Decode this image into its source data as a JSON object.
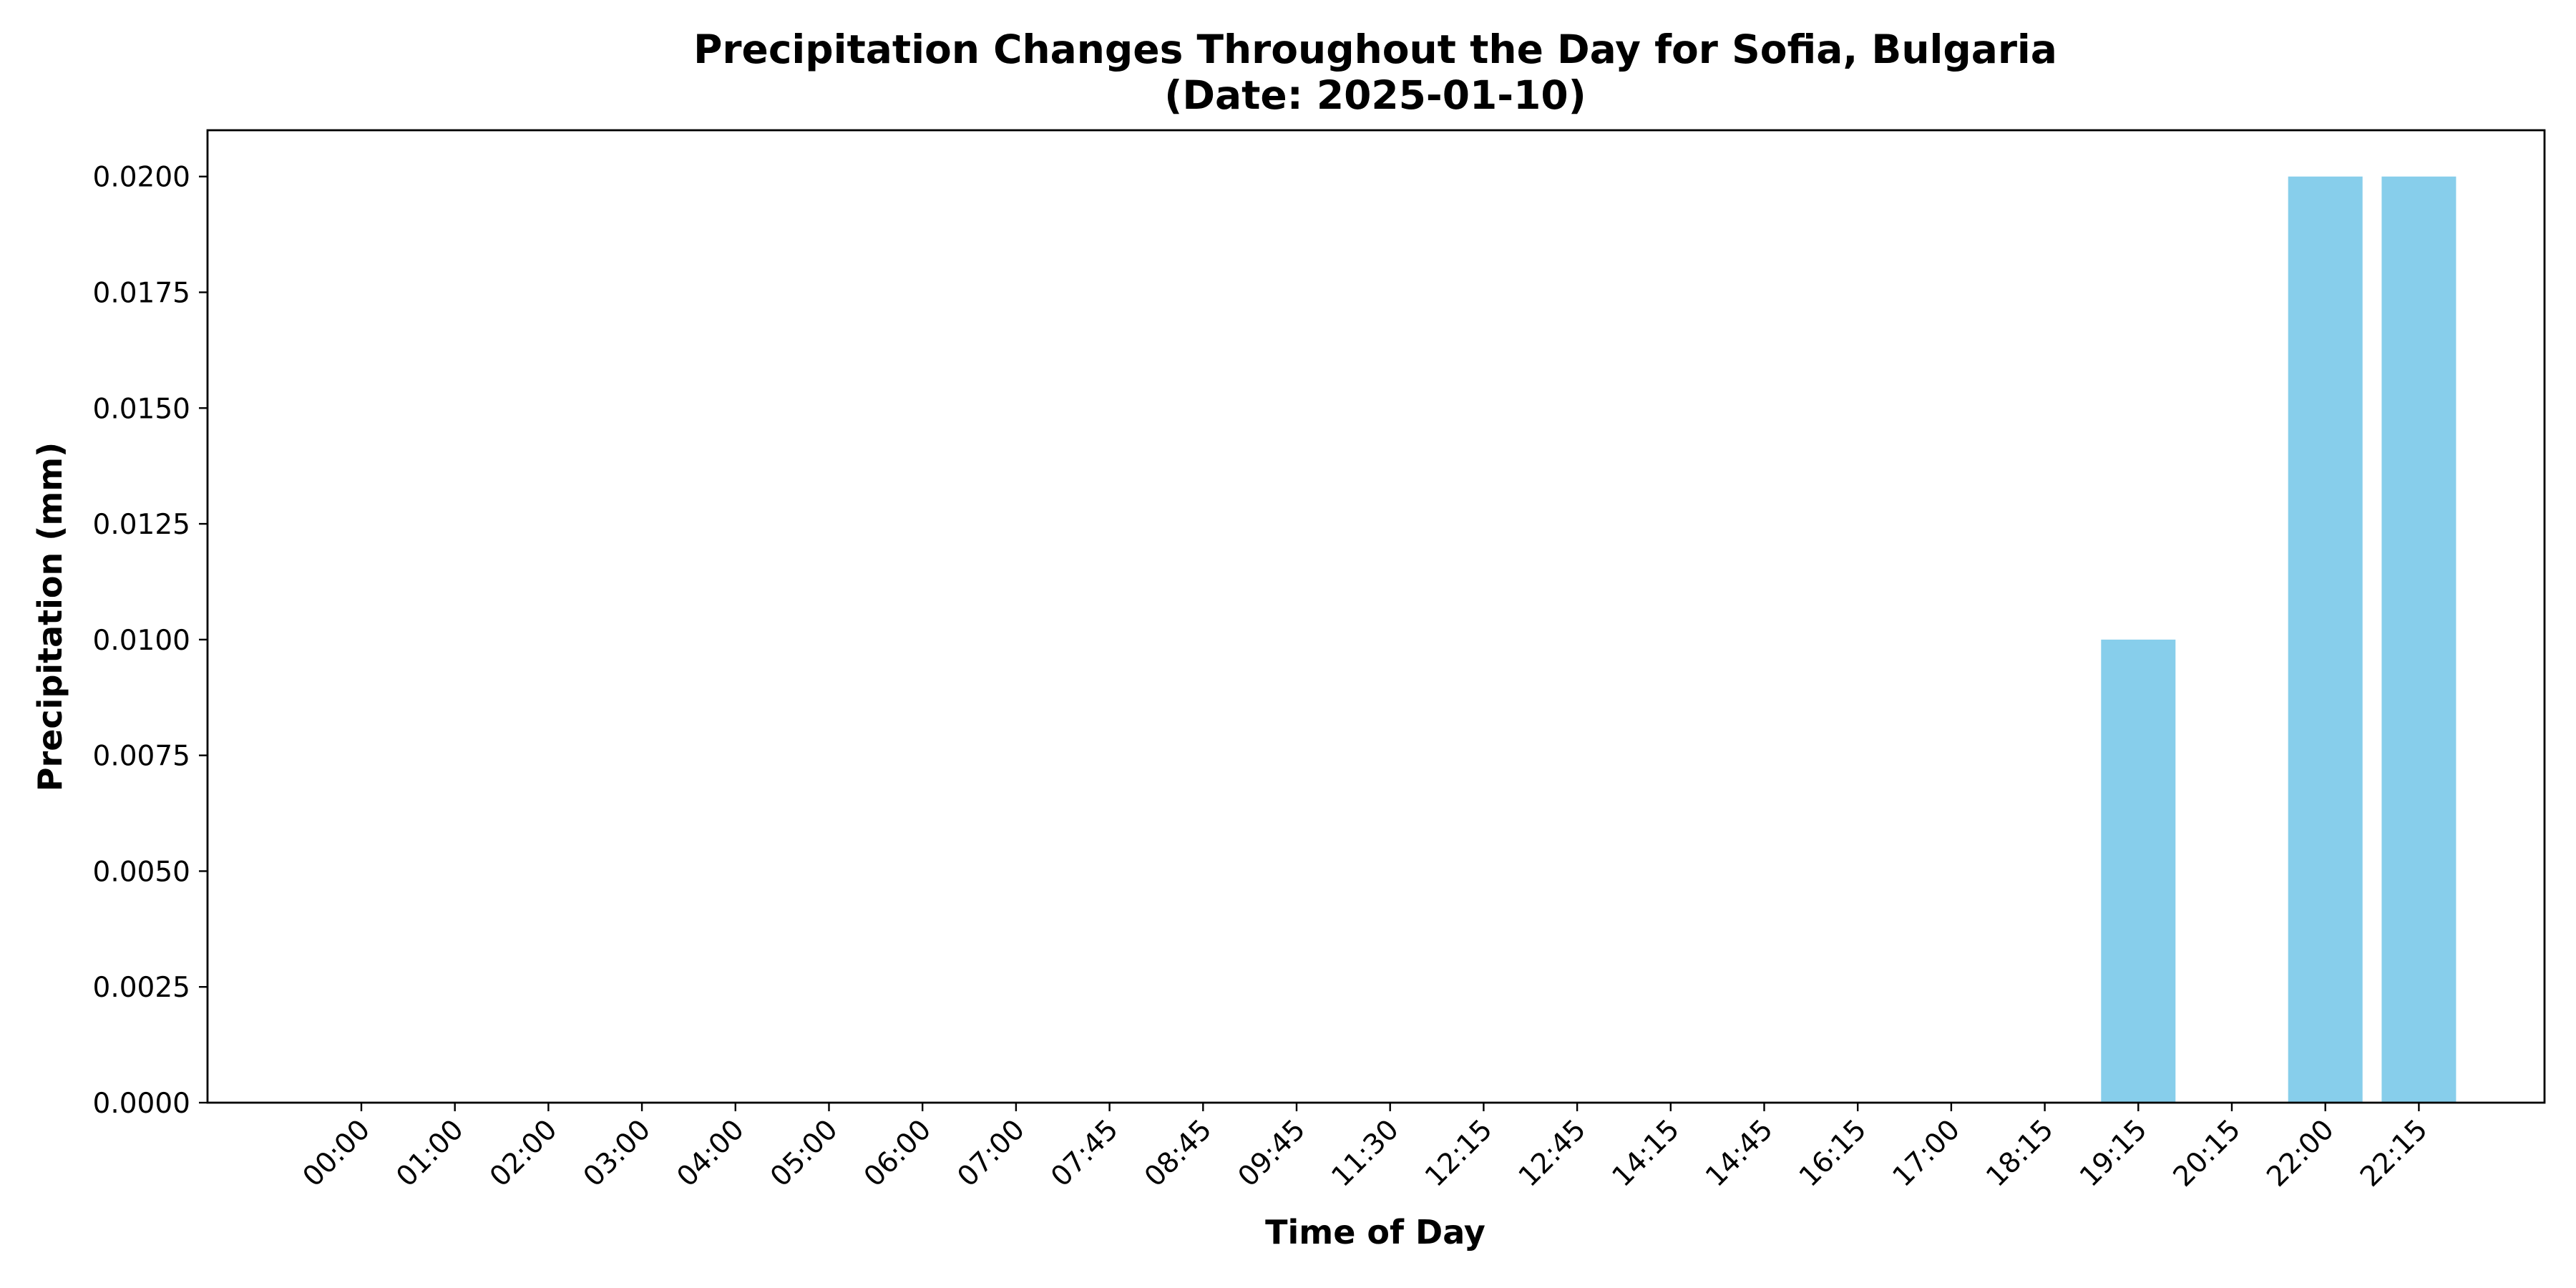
{
  "chart_data": {
    "type": "bar",
    "title": "Precipitation Changes Throughout the Day for Sofia, Bulgaria",
    "subtitle": "(Date: 2025-01-10)",
    "xlabel": "Time of Day",
    "ylabel": "Precipitation (mm)",
    "categories": [
      "00:00",
      "01:00",
      "02:00",
      "03:00",
      "04:00",
      "05:00",
      "06:00",
      "07:00",
      "07:45",
      "08:45",
      "09:45",
      "11:30",
      "12:15",
      "12:45",
      "14:15",
      "14:45",
      "16:15",
      "17:00",
      "18:15",
      "19:15",
      "20:15",
      "22:00",
      "22:15"
    ],
    "values": [
      0,
      0,
      0,
      0,
      0,
      0,
      0,
      0,
      0,
      0,
      0,
      0,
      0,
      0,
      0,
      0,
      0,
      0,
      0,
      0.01,
      0,
      0.02,
      0.02
    ],
    "ylim": [
      0,
      0.021
    ],
    "yticks": [
      "0.0000",
      "0.0025",
      "0.0050",
      "0.0075",
      "0.0100",
      "0.0125",
      "0.0150",
      "0.0175",
      "0.0200"
    ],
    "bar_color": "#87CEEB",
    "grid": false,
    "legend": "none"
  }
}
